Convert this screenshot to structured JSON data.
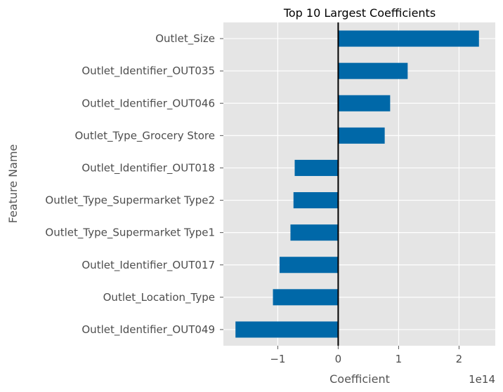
{
  "chart_data": {
    "type": "bar",
    "orientation": "horizontal",
    "title": "Top 10 Largest Coefficients",
    "xlabel": "Coefficient",
    "ylabel": "Feature Name",
    "x_offset_text": "1e14",
    "xlim": [
      -1.9,
      2.6
    ],
    "x_ticks": [
      -1,
      0,
      1,
      2
    ],
    "x_tick_labels": [
      "−1",
      "0",
      "1",
      "2"
    ],
    "grid": true,
    "zero_line": true,
    "categories": [
      "Outlet_Size",
      "Outlet_Identifier_OUT035",
      "Outlet_Identifier_OUT046",
      "Outlet_Type_Grocery Store",
      "Outlet_Identifier_OUT018",
      "Outlet_Type_Supermarket Type2",
      "Outlet_Type_Supermarket Type1",
      "Outlet_Identifier_OUT017",
      "Outlet_Location_Type",
      "Outlet_Identifier_OUT049"
    ],
    "values": [
      2.33,
      1.15,
      0.86,
      0.77,
      -0.72,
      -0.74,
      -0.79,
      -0.97,
      -1.08,
      -1.7
    ],
    "unit_scale": "1e14"
  },
  "colors": {
    "bar": "#0068a8",
    "plot_background": "#e5e5e5",
    "grid": "#ffffff",
    "zero_line": "#000000"
  }
}
